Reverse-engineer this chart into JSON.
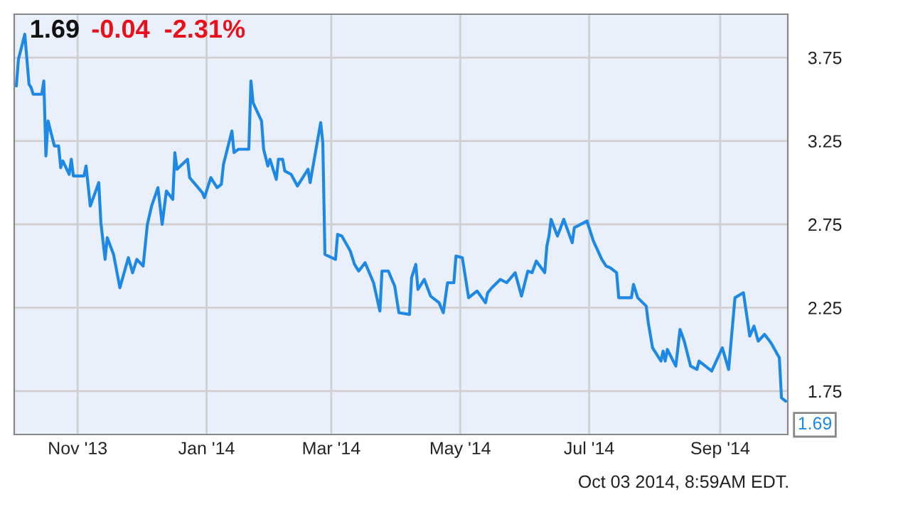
{
  "chart_data": {
    "type": "line",
    "title": "1.69",
    "subtitle": "-0.04  -2.31%",
    "annotations": [
      {
        "text": "1.69",
        "x": "2014-10-02",
        "y": 1.69
      },
      "Oct 03 2014, 8:59AM EDT."
    ],
    "x": [
      "2013-10-03",
      "2013-10-04",
      "2013-10-07",
      "2013-10-09",
      "2013-10-10",
      "2013-10-11",
      "2013-10-15",
      "2013-10-16",
      "2013-10-17",
      "2013-10-18",
      "2013-10-21",
      "2013-10-23",
      "2013-10-24",
      "2013-10-25",
      "2013-10-28",
      "2013-10-29",
      "2013-10-30",
      "2013-11-04",
      "2013-11-05",
      "2013-11-07",
      "2013-11-11",
      "2013-11-12",
      "2013-11-14",
      "2013-11-15",
      "2013-11-18",
      "2013-11-21",
      "2013-11-25",
      "2013-11-27",
      "2013-11-29",
      "2013-12-02",
      "2013-12-04",
      "2013-12-06",
      "2013-12-09",
      "2013-12-11",
      "2013-12-13",
      "2013-12-16",
      "2013-12-17",
      "2013-12-18",
      "2013-12-23",
      "2013-12-24",
      "2013-12-30",
      "2013-12-31",
      "2014-01-03",
      "2014-01-06",
      "2014-01-08",
      "2014-01-09",
      "2014-01-13",
      "2014-01-14",
      "2014-01-16",
      "2014-01-21",
      "2014-01-22",
      "2014-01-23",
      "2014-01-27",
      "2014-01-28",
      "2014-01-30",
      "2014-01-31",
      "2014-02-03",
      "2014-02-04",
      "2014-02-06",
      "2014-02-07",
      "2014-02-10",
      "2014-02-13",
      "2014-02-18",
      "2014-02-19",
      "2014-02-24",
      "2014-02-25",
      "2014-02-26",
      "2014-03-03",
      "2014-03-04",
      "2014-03-06",
      "2014-03-10",
      "2014-03-12",
      "2014-03-14",
      "2014-03-17",
      "2014-03-21",
      "2014-03-24",
      "2014-03-25",
      "2014-03-28",
      "2014-03-31",
      "2014-04-02",
      "2014-04-07",
      "2014-04-08",
      "2014-04-10",
      "2014-04-11",
      "2014-04-14",
      "2014-04-17",
      "2014-04-21",
      "2014-04-23",
      "2014-04-25",
      "2014-04-28",
      "2014-04-29",
      "2014-05-02",
      "2014-05-05",
      "2014-05-09",
      "2014-05-13",
      "2014-05-14",
      "2014-05-16",
      "2014-05-20",
      "2014-05-23",
      "2014-05-27",
      "2014-05-30",
      "2014-06-02",
      "2014-06-04",
      "2014-06-06",
      "2014-06-10",
      "2014-06-11",
      "2014-06-12",
      "2014-06-13",
      "2014-06-16",
      "2014-06-19",
      "2014-06-23",
      "2014-06-24",
      "2014-06-30",
      "2014-07-03",
      "2014-07-07",
      "2014-07-09",
      "2014-07-11",
      "2014-07-14",
      "2014-07-15",
      "2014-07-21",
      "2014-07-22",
      "2014-07-24",
      "2014-07-28",
      "2014-07-29",
      "2014-07-31",
      "2014-08-04",
      "2014-08-05",
      "2014-08-06",
      "2014-08-07",
      "2014-08-11",
      "2014-08-13",
      "2014-08-15",
      "2014-08-18",
      "2014-08-21",
      "2014-08-22",
      "2014-08-25",
      "2014-08-28",
      "2014-09-02",
      "2014-09-05",
      "2014-09-08",
      "2014-09-12",
      "2014-09-15",
      "2014-09-17",
      "2014-09-19",
      "2014-09-22",
      "2014-09-25",
      "2014-09-29",
      "2014-09-30",
      "2014-10-02"
    ],
    "series": [
      {
        "color": "#1e88e5",
        "values": [
          3.58,
          3.74,
          3.89,
          3.59,
          3.57,
          3.53,
          3.53,
          3.61,
          3.16,
          3.37,
          3.22,
          3.22,
          3.09,
          3.13,
          3.05,
          3.14,
          3.04,
          3.04,
          3.1,
          2.86,
          3.0,
          2.76,
          2.54,
          2.67,
          2.57,
          2.37,
          2.55,
          2.46,
          2.54,
          2.5,
          2.75,
          2.86,
          2.97,
          2.75,
          2.95,
          2.9,
          3.18,
          3.08,
          3.14,
          3.03,
          2.94,
          2.91,
          3.03,
          2.97,
          2.99,
          3.11,
          3.31,
          3.18,
          3.2,
          3.2,
          3.61,
          3.48,
          3.37,
          3.2,
          3.1,
          3.14,
          3.02,
          3.14,
          3.14,
          3.07,
          3.05,
          2.98,
          3.08,
          3.0,
          3.36,
          3.24,
          2.57,
          2.54,
          2.69,
          2.68,
          2.59,
          2.51,
          2.47,
          2.52,
          2.4,
          2.23,
          2.47,
          2.47,
          2.38,
          2.22,
          2.21,
          2.43,
          2.51,
          2.36,
          2.42,
          2.32,
          2.28,
          2.22,
          2.4,
          2.4,
          2.56,
          2.55,
          2.31,
          2.35,
          2.28,
          2.34,
          2.37,
          2.42,
          2.4,
          2.46,
          2.32,
          2.47,
          2.46,
          2.53,
          2.46,
          2.62,
          2.68,
          2.78,
          2.68,
          2.78,
          2.64,
          2.73,
          2.77,
          2.65,
          2.54,
          2.5,
          2.49,
          2.46,
          2.31,
          2.31,
          2.39,
          2.31,
          2.26,
          2.16,
          2.01,
          1.93,
          1.99,
          1.93,
          2.0,
          1.9,
          2.12,
          2.05,
          1.9,
          1.88,
          1.93,
          1.9,
          1.87,
          2.01,
          1.88,
          2.31,
          2.34,
          2.08,
          2.14,
          2.05,
          2.09,
          2.04,
          1.95,
          1.71,
          1.69
        ]
      }
    ],
    "xlim": [
      "2013-10-02",
      "2014-10-03"
    ],
    "xticks": [
      {
        "value": "2013-11-01",
        "label": "Nov '13"
      },
      {
        "value": "2014-01-01",
        "label": "Jan '14"
      },
      {
        "value": "2014-03-01",
        "label": "Mar '14"
      },
      {
        "value": "2014-05-01",
        "label": "May '14"
      },
      {
        "value": "2014-07-01",
        "label": "Jul '14"
      },
      {
        "value": "2014-09-01",
        "label": "Sep '14"
      }
    ],
    "ylim": [
      1.49,
      4.01
    ],
    "yticks": [
      1.75,
      2.25,
      2.75,
      3.25,
      3.75
    ],
    "grid": true,
    "marker": "none",
    "line_style": "solid"
  }
}
